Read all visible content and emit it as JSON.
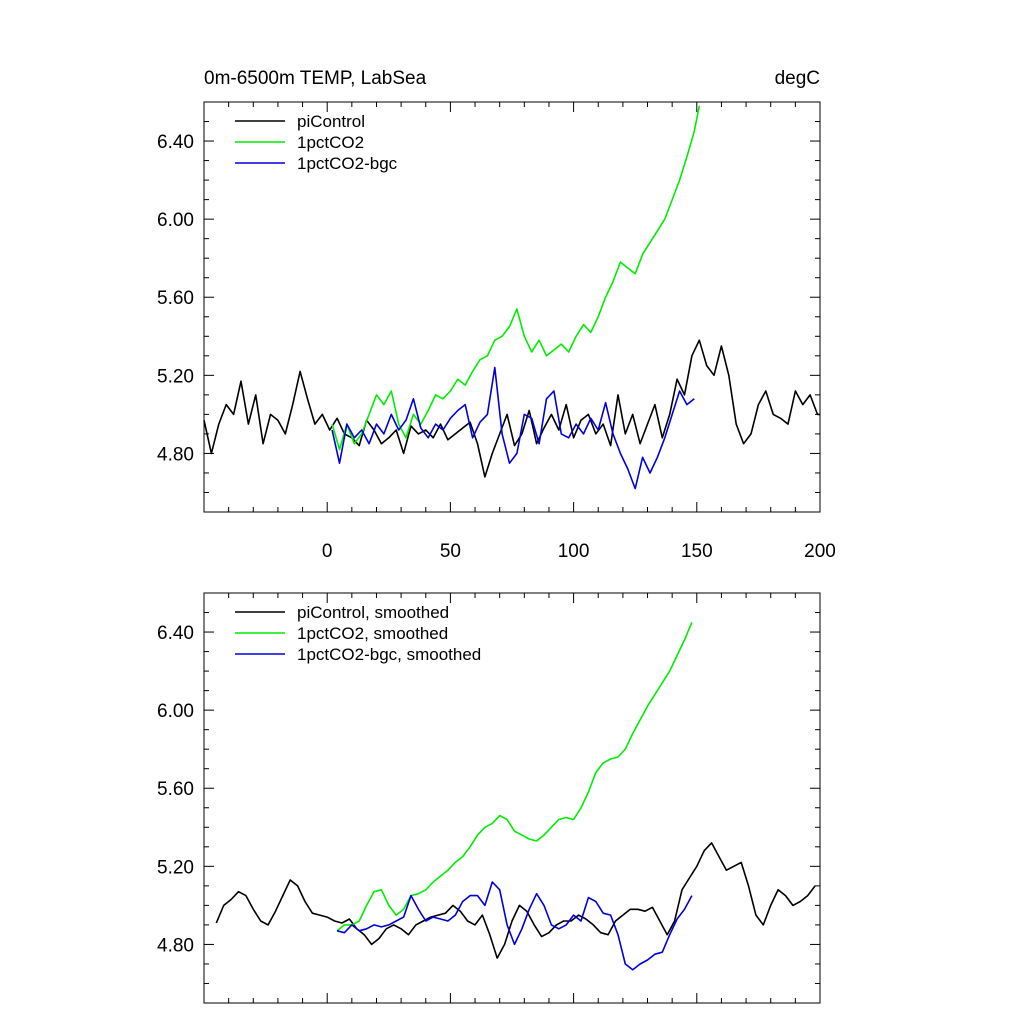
{
  "chart_data": [
    {
      "type": "line",
      "panel": "top",
      "title": "0m-6500m TEMP, LabSea",
      "units": "degC",
      "xlim": [
        -50,
        200
      ],
      "ylim": [
        4.5,
        6.6
      ],
      "xticks": [
        0,
        50,
        100,
        150,
        200
      ],
      "xtick_labels": [
        "0",
        "50",
        "100",
        "150",
        "200"
      ],
      "yticks": [
        4.8,
        5.2,
        5.6,
        6.0,
        6.4
      ],
      "ytick_labels": [
        "4.80",
        "5.20",
        "5.60",
        "6.00",
        "6.40"
      ],
      "legend_position": "top-left",
      "series": [
        {
          "name": "piControl",
          "color": "#000000",
          "x": [
            -50,
            -47,
            -44,
            -41,
            -38,
            -35,
            -32,
            -29,
            -26,
            -23,
            -20,
            -17,
            -14,
            -11,
            -8,
            -5,
            -2,
            1,
            4,
            7,
            10,
            13,
            16,
            19,
            22,
            25,
            28,
            31,
            34,
            37,
            40,
            43,
            46,
            49,
            52,
            55,
            58,
            61,
            64,
            67,
            70,
            73,
            76,
            79,
            82,
            85,
            88,
            91,
            94,
            97,
            100,
            103,
            106,
            109,
            112,
            115,
            118,
            121,
            124,
            127,
            130,
            133,
            136,
            139,
            142,
            145,
            148,
            151,
            154,
            157,
            160,
            163,
            166,
            169,
            172,
            175,
            178,
            181,
            184,
            187,
            190,
            193,
            196,
            199,
            200
          ],
          "y": [
            4.97,
            4.8,
            4.95,
            5.05,
            5.0,
            5.17,
            4.95,
            5.1,
            4.85,
            5.0,
            4.97,
            4.9,
            5.05,
            5.22,
            5.08,
            4.95,
            5.0,
            4.92,
            4.98,
            4.9,
            4.88,
            4.84,
            4.97,
            4.92,
            4.85,
            4.88,
            4.92,
            4.8,
            4.94,
            4.9,
            4.92,
            4.88,
            4.95,
            4.87,
            4.9,
            4.93,
            4.96,
            4.85,
            4.68,
            4.8,
            4.9,
            5.0,
            4.84,
            4.9,
            5.02,
            4.85,
            4.93,
            5.0,
            4.92,
            5.05,
            4.88,
            4.97,
            5.0,
            4.9,
            4.95,
            4.84,
            5.1,
            4.9,
            5.0,
            4.85,
            4.95,
            5.05,
            4.88,
            5.0,
            5.18,
            5.1,
            5.3,
            5.38,
            5.25,
            5.2,
            5.35,
            5.2,
            4.95,
            4.85,
            4.9,
            5.05,
            5.12,
            5.0,
            4.98,
            4.95,
            5.12,
            5.05,
            5.1,
            5.0,
            5.0
          ]
        },
        {
          "name": "1pctCO2",
          "color": "#00ee00",
          "x": [
            2,
            5,
            8,
            11,
            14,
            17,
            20,
            23,
            26,
            29,
            32,
            35,
            38,
            41,
            44,
            47,
            50,
            53,
            56,
            59,
            62,
            65,
            68,
            71,
            74,
            77,
            80,
            83,
            86,
            89,
            92,
            95,
            98,
            101,
            104,
            107,
            110,
            113,
            116,
            119,
            122,
            125,
            128,
            131,
            134,
            137,
            140,
            143,
            146,
            149,
            151
          ],
          "y": [
            4.95,
            4.82,
            4.95,
            4.85,
            4.9,
            5.0,
            5.1,
            5.05,
            5.12,
            4.95,
            4.88,
            5.0,
            4.95,
            5.02,
            5.1,
            5.08,
            5.12,
            5.18,
            5.15,
            5.22,
            5.28,
            5.3,
            5.38,
            5.4,
            5.45,
            5.54,
            5.4,
            5.32,
            5.38,
            5.3,
            5.33,
            5.36,
            5.32,
            5.4,
            5.46,
            5.42,
            5.5,
            5.6,
            5.68,
            5.78,
            5.75,
            5.72,
            5.82,
            5.88,
            5.94,
            6.0,
            6.1,
            6.2,
            6.32,
            6.45,
            6.58
          ]
        },
        {
          "name": "1pctCO2-bgc",
          "color": "#0000dd",
          "x": [
            2,
            5,
            8,
            11,
            14,
            17,
            20,
            23,
            26,
            29,
            32,
            35,
            38,
            41,
            44,
            47,
            50,
            53,
            56,
            59,
            62,
            65,
            68,
            71,
            74,
            77,
            80,
            83,
            86,
            89,
            92,
            95,
            98,
            101,
            104,
            107,
            110,
            113,
            116,
            119,
            122,
            125,
            128,
            131,
            134,
            137,
            140,
            143,
            146,
            149
          ],
          "y": [
            4.92,
            4.75,
            4.95,
            4.88,
            4.92,
            4.85,
            4.95,
            4.9,
            5.0,
            4.92,
            4.97,
            5.08,
            4.93,
            4.88,
            4.95,
            4.92,
            4.98,
            5.02,
            5.05,
            4.88,
            4.96,
            5.0,
            5.24,
            4.9,
            4.75,
            4.8,
            5.0,
            4.98,
            4.85,
            5.08,
            5.12,
            4.9,
            4.88,
            4.95,
            4.9,
            4.98,
            4.92,
            5.06,
            4.9,
            4.8,
            4.72,
            4.62,
            4.78,
            4.7,
            4.78,
            4.88,
            5.0,
            5.12,
            5.05,
            5.08
          ]
        }
      ]
    },
    {
      "type": "line",
      "panel": "bottom",
      "title": "",
      "xlim": [
        -50,
        200
      ],
      "ylim": [
        4.5,
        6.6
      ],
      "xticks": [
        0,
        50,
        100,
        150,
        200
      ],
      "yticks": [
        4.8,
        5.2,
        5.6,
        6.0,
        6.4
      ],
      "ytick_labels": [
        "4.80",
        "5.20",
        "5.60",
        "6.00",
        "6.40"
      ],
      "legend_position": "top-left",
      "series": [
        {
          "name": "piControl, smoothed",
          "color": "#000000",
          "x": [
            -45,
            -42,
            -39,
            -36,
            -33,
            -30,
            -27,
            -24,
            -21,
            -18,
            -15,
            -12,
            -9,
            -6,
            -3,
            0,
            3,
            6,
            9,
            12,
            15,
            18,
            21,
            24,
            27,
            30,
            33,
            36,
            39,
            42,
            45,
            48,
            51,
            54,
            57,
            60,
            63,
            66,
            69,
            72,
            75,
            78,
            81,
            84,
            87,
            90,
            93,
            96,
            99,
            102,
            105,
            108,
            111,
            114,
            117,
            120,
            123,
            126,
            129,
            132,
            135,
            138,
            141,
            144,
            147,
            150,
            153,
            156,
            159,
            162,
            165,
            168,
            171,
            174,
            177,
            180,
            183,
            186,
            189,
            192,
            195,
            198
          ],
          "y": [
            4.91,
            5.0,
            5.03,
            5.07,
            5.05,
            4.98,
            4.92,
            4.9,
            4.97,
            5.05,
            5.13,
            5.1,
            5.02,
            4.96,
            4.95,
            4.94,
            4.92,
            4.91,
            4.93,
            4.88,
            4.85,
            4.8,
            4.83,
            4.88,
            4.9,
            4.88,
            4.85,
            4.9,
            4.92,
            4.94,
            4.95,
            4.96,
            5.0,
            4.97,
            4.92,
            4.9,
            4.95,
            4.85,
            4.73,
            4.8,
            4.92,
            5.0,
            4.97,
            4.9,
            4.84,
            4.86,
            4.9,
            4.92,
            4.92,
            4.95,
            4.93,
            4.9,
            4.86,
            4.85,
            4.92,
            4.95,
            4.98,
            4.98,
            4.97,
            4.99,
            4.92,
            4.85,
            4.92,
            5.08,
            5.14,
            5.2,
            5.28,
            5.32,
            5.25,
            5.18,
            5.2,
            5.22,
            5.1,
            4.95,
            4.9,
            5.0,
            5.08,
            5.05,
            5.0,
            5.02,
            5.05,
            5.1
          ]
        },
        {
          "name": "1pctCO2, smoothed",
          "color": "#00ee00",
          "x": [
            4,
            7,
            10,
            13,
            16,
            19,
            22,
            25,
            28,
            31,
            34,
            37,
            40,
            43,
            46,
            49,
            52,
            55,
            58,
            61,
            64,
            67,
            70,
            73,
            76,
            79,
            82,
            85,
            88,
            91,
            94,
            97,
            100,
            103,
            106,
            109,
            112,
            115,
            118,
            121,
            124,
            127,
            130,
            133,
            136,
            139,
            142,
            145,
            148
          ],
          "y": [
            4.87,
            4.9,
            4.9,
            4.92,
            5.0,
            5.07,
            5.08,
            5.0,
            4.95,
            4.98,
            5.05,
            5.06,
            5.08,
            5.12,
            5.15,
            5.18,
            5.22,
            5.25,
            5.3,
            5.36,
            5.4,
            5.42,
            5.46,
            5.44,
            5.38,
            5.36,
            5.34,
            5.33,
            5.36,
            5.4,
            5.44,
            5.45,
            5.44,
            5.5,
            5.58,
            5.68,
            5.73,
            5.75,
            5.76,
            5.8,
            5.88,
            5.95,
            6.02,
            6.08,
            6.14,
            6.2,
            6.28,
            6.36,
            6.45
          ]
        },
        {
          "name": "1pctCO2-bgc, smoothed",
          "color": "#0000dd",
          "x": [
            4,
            7,
            10,
            13,
            16,
            19,
            22,
            25,
            28,
            31,
            34,
            37,
            40,
            43,
            46,
            49,
            52,
            55,
            58,
            61,
            64,
            67,
            70,
            73,
            76,
            79,
            82,
            85,
            88,
            91,
            94,
            97,
            100,
            103,
            106,
            109,
            112,
            115,
            118,
            121,
            124,
            127,
            130,
            133,
            136,
            139,
            142,
            145,
            148
          ],
          "y": [
            4.87,
            4.86,
            4.9,
            4.87,
            4.88,
            4.9,
            4.89,
            4.9,
            4.92,
            4.94,
            5.05,
            4.98,
            4.92,
            4.94,
            4.93,
            4.92,
            4.95,
            5.02,
            5.05,
            5.05,
            5.0,
            5.12,
            5.08,
            4.9,
            4.8,
            4.88,
            4.98,
            5.06,
            5.0,
            4.9,
            4.88,
            4.9,
            4.95,
            4.92,
            5.04,
            5.02,
            4.96,
            4.95,
            4.85,
            4.7,
            4.67,
            4.7,
            4.72,
            4.75,
            4.76,
            4.85,
            4.93,
            4.98,
            5.05
          ]
        }
      ]
    }
  ]
}
